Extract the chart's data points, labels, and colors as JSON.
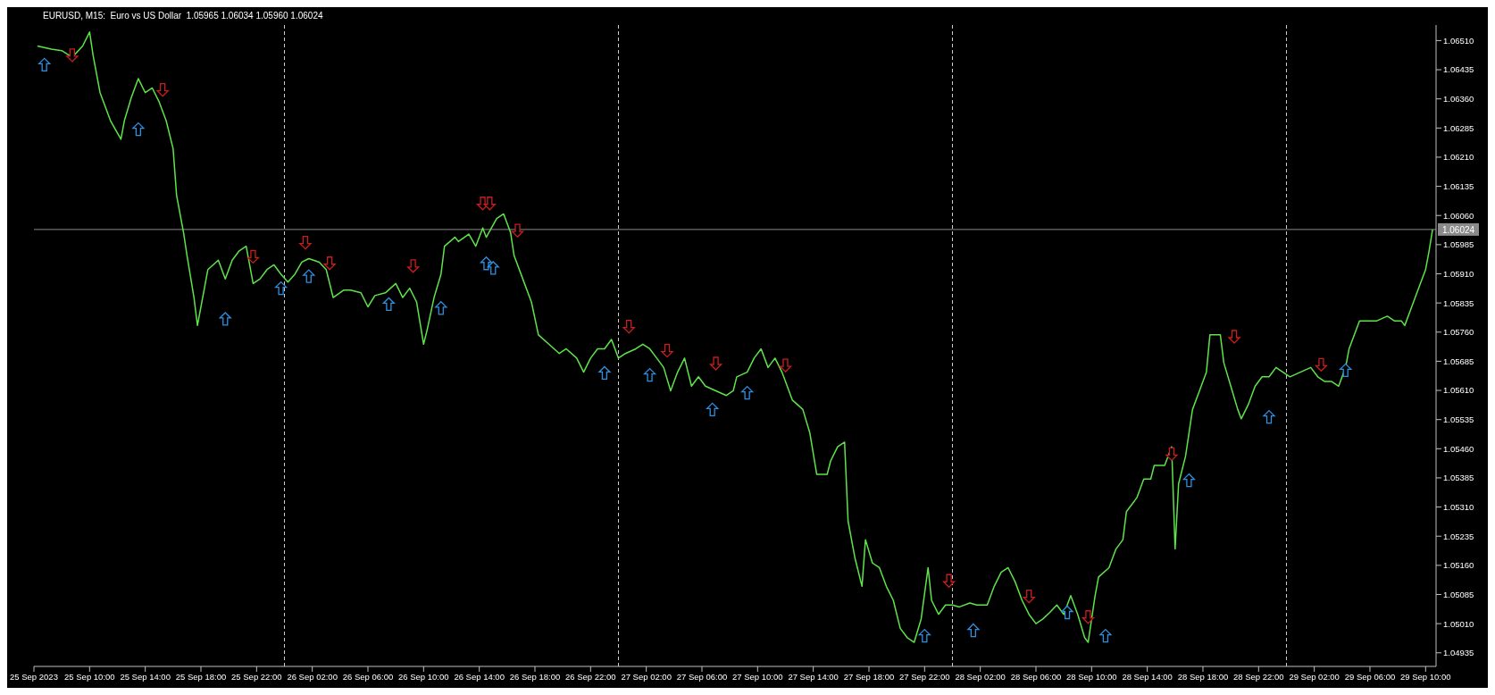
{
  "chart_data": {
    "type": "line",
    "title": "EURUSD, M15:  Euro vs US Dollar  1.05965 1.06034 1.05960 1.06024",
    "series": [
      {
        "color": "#5ee34a",
        "x": [
          "2023-09-25T06:15",
          "2023-09-25T07:15",
          "2023-09-25T08:00",
          "2023-09-25T08:45",
          "2023-09-25T09:30",
          "2023-09-25T10:00",
          "2023-09-25T10:15",
          "2023-09-25T10:45",
          "2023-09-25T11:30",
          "2023-09-25T12:15",
          "2023-09-25T12:30",
          "2023-09-25T13:00",
          "2023-09-25T13:30",
          "2023-09-25T14:00",
          "2023-09-25T14:30",
          "2023-09-25T15:00",
          "2023-09-25T15:30",
          "2023-09-25T16:00",
          "2023-09-25T16:15",
          "2023-09-25T16:45",
          "2023-09-25T17:00",
          "2023-09-25T17:30",
          "2023-09-25T17:45",
          "2023-09-25T18:15",
          "2023-09-25T18:30",
          "2023-09-25T19:15",
          "2023-09-25T19:45",
          "2023-09-25T20:15",
          "2023-09-25T20:45",
          "2023-09-25T21:15",
          "2023-09-25T21:45",
          "2023-09-25T22:15",
          "2023-09-25T22:45",
          "2023-09-25T23:15",
          "2023-09-25T23:45",
          "2023-09-26T00:15",
          "2023-09-26T00:45",
          "2023-09-26T01:15",
          "2023-09-26T01:45",
          "2023-09-26T02:30",
          "2023-09-26T03:00",
          "2023-09-26T03:30",
          "2023-09-26T04:15",
          "2023-09-26T04:45",
          "2023-09-26T05:30",
          "2023-09-26T06:00",
          "2023-09-26T06:30",
          "2023-09-26T07:15",
          "2023-09-26T08:00",
          "2023-09-26T08:30",
          "2023-09-26T09:00",
          "2023-09-26T09:30",
          "2023-09-26T10:00",
          "2023-09-26T10:15",
          "2023-09-26T10:45",
          "2023-09-26T11:15",
          "2023-09-26T11:30",
          "2023-09-26T12:15",
          "2023-09-26T12:30",
          "2023-09-26T13:15",
          "2023-09-26T13:45",
          "2023-09-26T14:15",
          "2023-09-26T14:30",
          "2023-09-26T15:15",
          "2023-09-26T15:45",
          "2023-09-26T16:15",
          "2023-09-26T16:30",
          "2023-09-26T17:15",
          "2023-09-26T17:45",
          "2023-09-26T18:15",
          "2023-09-26T19:00",
          "2023-09-26T19:45",
          "2023-09-26T20:15",
          "2023-09-26T21:00",
          "2023-09-26T21:30",
          "2023-09-26T22:00",
          "2023-09-26T22:30",
          "2023-09-26T23:00",
          "2023-09-26T23:30",
          "2023-09-27T00:00",
          "2023-09-27T00:30",
          "2023-09-27T01:15",
          "2023-09-27T01:45",
          "2023-09-27T02:15",
          "2023-09-27T02:45",
          "2023-09-27T03:15",
          "2023-09-27T03:45",
          "2023-09-27T04:15",
          "2023-09-27T04:45",
          "2023-09-27T05:15",
          "2023-09-27T05:45",
          "2023-09-27T06:15",
          "2023-09-27T07:00",
          "2023-09-27T07:45",
          "2023-09-27T08:15",
          "2023-09-27T08:30",
          "2023-09-27T09:15",
          "2023-09-27T09:45",
          "2023-09-27T10:15",
          "2023-09-27T10:45",
          "2023-09-27T11:15",
          "2023-09-27T11:45",
          "2023-09-27T12:15",
          "2023-09-27T12:30",
          "2023-09-27T13:15",
          "2023-09-27T13:45",
          "2023-09-27T14:15",
          "2023-09-27T15:00",
          "2023-09-27T15:15",
          "2023-09-27T15:45",
          "2023-09-27T16:15",
          "2023-09-27T16:30",
          "2023-09-27T17:00",
          "2023-09-27T17:30",
          "2023-09-27T17:45",
          "2023-09-27T18:15",
          "2023-09-27T18:45",
          "2023-09-27T19:15",
          "2023-09-27T19:45",
          "2023-09-27T20:15",
          "2023-09-27T20:45",
          "2023-09-27T21:15",
          "2023-09-27T21:45",
          "2023-09-27T22:15",
          "2023-09-27T22:30",
          "2023-09-27T23:00",
          "2023-09-27T23:30",
          "2023-09-28T00:00",
          "2023-09-28T00:30",
          "2023-09-28T01:15",
          "2023-09-28T01:45",
          "2023-09-28T02:30",
          "2023-09-28T03:00",
          "2023-09-28T03:30",
          "2023-09-28T04:00",
          "2023-09-28T04:30",
          "2023-09-28T05:00",
          "2023-09-28T05:30",
          "2023-09-28T06:00",
          "2023-09-28T06:30",
          "2023-09-28T07:00",
          "2023-09-28T07:30",
          "2023-09-28T08:00",
          "2023-09-28T08:30",
          "2023-09-28T09:00",
          "2023-09-28T09:30",
          "2023-09-28T09:45",
          "2023-09-28T10:15",
          "2023-09-28T10:30",
          "2023-09-28T11:15",
          "2023-09-28T11:45",
          "2023-09-28T12:15",
          "2023-09-28T12:30",
          "2023-09-28T13:15",
          "2023-09-28T13:45",
          "2023-09-28T14:15",
          "2023-09-28T14:30",
          "2023-09-28T15:15",
          "2023-09-28T15:45",
          "2023-09-28T16:00",
          "2023-09-28T16:15",
          "2023-09-28T16:45",
          "2023-09-28T17:15",
          "2023-09-28T17:45",
          "2023-09-28T18:15",
          "2023-09-28T18:30",
          "2023-09-28T19:15",
          "2023-09-28T19:30",
          "2023-09-28T20:00",
          "2023-09-28T20:30",
          "2023-09-28T20:45",
          "2023-09-28T21:15",
          "2023-09-28T21:45",
          "2023-09-28T22:15",
          "2023-09-28T22:45",
          "2023-09-28T23:15",
          "2023-09-28T23:45",
          "2023-09-29T00:15",
          "2023-09-29T01:00",
          "2023-09-29T01:45",
          "2023-09-29T02:15",
          "2023-09-29T02:45",
          "2023-09-29T03:15",
          "2023-09-29T03:45",
          "2023-09-29T04:15",
          "2023-09-29T04:30",
          "2023-09-29T05:15",
          "2023-09-29T05:45",
          "2023-09-29T06:30",
          "2023-09-29T07:15",
          "2023-09-29T07:45",
          "2023-09-29T08:15",
          "2023-09-29T08:30",
          "2023-09-29T09:00",
          "2023-09-29T09:30",
          "2023-09-29T10:00",
          "2023-09-29T10:15",
          "2023-09-29T10:30"
        ],
        "values": [
          1.06496,
          1.06488,
          1.06484,
          1.06467,
          1.06496,
          1.06532,
          1.06472,
          1.06376,
          1.06304,
          1.06256,
          1.06304,
          1.06364,
          1.06412,
          1.06376,
          1.06388,
          1.06352,
          1.06304,
          1.06232,
          1.06112,
          1.06016,
          1.05957,
          1.05849,
          1.05777,
          1.05873,
          1.05921,
          1.05945,
          1.05897,
          1.05945,
          1.05969,
          1.05981,
          1.05885,
          1.05897,
          1.05921,
          1.05933,
          1.05909,
          1.05889,
          1.05909,
          1.0594,
          1.05949,
          1.0594,
          1.05921,
          1.05849,
          1.05868,
          1.05868,
          1.05861,
          1.05825,
          1.05854,
          1.05861,
          1.05885,
          1.05849,
          1.05873,
          1.05837,
          1.05729,
          1.05765,
          1.05849,
          1.05909,
          1.05981,
          1.06004,
          1.05993,
          1.06012,
          1.05981,
          1.06028,
          1.06004,
          1.06052,
          1.06064,
          1.06016,
          1.05957,
          1.05885,
          1.05837,
          1.05753,
          1.05729,
          1.05705,
          1.05717,
          1.05693,
          1.05657,
          1.05693,
          1.05717,
          1.05717,
          1.05741,
          1.05693,
          1.05705,
          1.05717,
          1.05729,
          1.05717,
          1.05693,
          1.05669,
          1.05609,
          1.05657,
          1.05693,
          1.05621,
          1.05645,
          1.05621,
          1.05609,
          1.05597,
          1.05609,
          1.05645,
          1.05657,
          1.05693,
          1.05717,
          1.05669,
          1.05693,
          1.05657,
          1.05609,
          1.05585,
          1.05561,
          1.05501,
          1.05394,
          1.05394,
          1.05429,
          1.05465,
          1.05477,
          1.05274,
          1.05178,
          1.05106,
          1.05226,
          1.05166,
          1.05154,
          1.05106,
          1.0507,
          1.04998,
          1.04974,
          1.04962,
          1.05022,
          1.05154,
          1.0507,
          1.05034,
          1.05058,
          1.05058,
          1.05053,
          1.05063,
          1.05058,
          1.05058,
          1.05106,
          1.05142,
          1.05154,
          1.05118,
          1.0507,
          1.05034,
          1.0501,
          1.05022,
          1.05039,
          1.05058,
          1.05034,
          1.05082,
          1.05034,
          1.04974,
          1.04962,
          1.05082,
          1.0513,
          1.05154,
          1.05202,
          1.05226,
          1.05298,
          1.05334,
          1.05382,
          1.05382,
          1.05417,
          1.05417,
          1.05465,
          1.05202,
          1.0537,
          1.05441,
          1.05561,
          1.05609,
          1.05657,
          1.05753,
          1.05753,
          1.05681,
          1.05621,
          1.05561,
          1.05537,
          1.05573,
          1.05621,
          1.05645,
          1.05645,
          1.05669,
          1.05657,
          1.05645,
          1.05657,
          1.05669,
          1.05645,
          1.05633,
          1.05633,
          1.05621,
          1.05669,
          1.05717,
          1.05789,
          1.05789,
          1.05789,
          1.05801,
          1.05789,
          1.05789,
          1.05777,
          1.05825,
          1.05873,
          1.05921,
          1.05969,
          1.06024
        ]
      },
      {
        "type": "scatter",
        "color": "#2f8fe0",
        "marker": "triangle",
        "x": [
          "2023-09-25T06:45",
          "2023-09-25T13:30",
          "2023-09-25T19:45",
          "2023-09-25T23:45",
          "2023-09-26T01:45",
          "2023-09-26T07:30",
          "2023-09-26T11:15",
          "2023-09-26T14:30",
          "2023-09-26T15:00",
          "2023-09-26T23:00",
          "2023-09-27T02:15",
          "2023-09-27T06:45",
          "2023-09-27T09:15",
          "2023-09-27T22:00",
          "2023-09-28T01:30",
          "2023-09-28T08:15",
          "2023-09-28T11:00",
          "2023-09-28T17:00",
          "2023-09-28T22:45",
          "2023-09-29T04:15"
        ],
        "values": [
          1.06448,
          1.06282,
          1.05794,
          1.05873,
          1.05904,
          1.05832,
          1.05822,
          1.05937,
          1.05925,
          1.05655,
          1.0565,
          1.05561,
          1.05604,
          1.04979,
          1.04993,
          1.05039,
          1.04979,
          1.05379,
          1.05542,
          1.05662
        ]
      },
      {
        "type": "scatter",
        "color": "#c81e1e",
        "marker": "triangle-down",
        "x": [
          "2023-09-25T08:45",
          "2023-09-25T15:15",
          "2023-09-25T21:45",
          "2023-09-26T01:30",
          "2023-09-26T03:15",
          "2023-09-26T09:15",
          "2023-09-26T14:15",
          "2023-09-26T14:45",
          "2023-09-26T16:45",
          "2023-09-27T00:45",
          "2023-09-27T03:30",
          "2023-09-27T07:00",
          "2023-09-27T12:00",
          "2023-09-27T23:45",
          "2023-09-28T05:30",
          "2023-09-28T09:45",
          "2023-09-28T15:45",
          "2023-09-28T20:15",
          "2023-09-29T02:30"
        ],
        "values": [
          1.06472,
          1.06383,
          1.05954,
          1.0599,
          1.05937,
          1.0593,
          1.06091,
          1.06091,
          1.06021,
          1.05774,
          1.05712,
          1.05679,
          1.05674,
          1.0512,
          1.0508,
          1.05027,
          1.05446,
          1.05748,
          1.05676
        ]
      }
    ],
    "xlim": [
      "2023-09-25T06:00",
      "2023-09-29T10:45"
    ],
    "xticks": [
      {
        "value": "2023-09-25T06:00",
        "label": "25 Sep 2023"
      },
      {
        "value": "2023-09-25T10:00",
        "label": "25 Sep 10:00"
      },
      {
        "value": "2023-09-25T14:00",
        "label": "25 Sep 14:00"
      },
      {
        "value": "2023-09-25T18:00",
        "label": "25 Sep 18:00"
      },
      {
        "value": "2023-09-25T22:00",
        "label": "25 Sep 22:00"
      },
      {
        "value": "2023-09-26T02:00",
        "label": "26 Sep 02:00"
      },
      {
        "value": "2023-09-26T06:00",
        "label": "26 Sep 06:00"
      },
      {
        "value": "2023-09-26T10:00",
        "label": "26 Sep 10:00"
      },
      {
        "value": "2023-09-26T14:00",
        "label": "26 Sep 14:00"
      },
      {
        "value": "2023-09-26T18:00",
        "label": "26 Sep 18:00"
      },
      {
        "value": "2023-09-26T22:00",
        "label": "26 Sep 22:00"
      },
      {
        "value": "2023-09-27T02:00",
        "label": "27 Sep 02:00"
      },
      {
        "value": "2023-09-27T06:00",
        "label": "27 Sep 06:00"
      },
      {
        "value": "2023-09-27T10:00",
        "label": "27 Sep 10:00"
      },
      {
        "value": "2023-09-27T14:00",
        "label": "27 Sep 14:00"
      },
      {
        "value": "2023-09-27T18:00",
        "label": "27 Sep 18:00"
      },
      {
        "value": "2023-09-27T22:00",
        "label": "27 Sep 22:00"
      },
      {
        "value": "2023-09-28T02:00",
        "label": "28 Sep 02:00"
      },
      {
        "value": "2023-09-28T06:00",
        "label": "28 Sep 06:00"
      },
      {
        "value": "2023-09-28T10:00",
        "label": "28 Sep 10:00"
      },
      {
        "value": "2023-09-28T14:00",
        "label": "28 Sep 14:00"
      },
      {
        "value": "2023-09-28T18:00",
        "label": "28 Sep 18:00"
      },
      {
        "value": "2023-09-28T22:00",
        "label": "28 Sep 22:00"
      },
      {
        "value": "2023-09-29T02:00",
        "label": "29 Sep 02:00"
      },
      {
        "value": "2023-09-29T06:00",
        "label": "29 Sep 06:00"
      },
      {
        "value": "2023-09-29T10:00",
        "label": "29 Sep 10:00"
      }
    ],
    "ylim": [
      1.049,
      1.0655
    ],
    "yticks": [
      {
        "value": 1.04935,
        "label": "1.04935"
      },
      {
        "value": 1.0501,
        "label": "1.05010"
      },
      {
        "value": 1.05085,
        "label": "1.05085"
      },
      {
        "value": 1.0516,
        "label": "1.05160"
      },
      {
        "value": 1.05235,
        "label": "1.05235"
      },
      {
        "value": 1.0531,
        "label": "1.05310"
      },
      {
        "value": 1.05385,
        "label": "1.05385"
      },
      {
        "value": 1.0546,
        "label": "1.05460"
      },
      {
        "value": 1.05535,
        "label": "1.05535"
      },
      {
        "value": 1.0561,
        "label": "1.05610"
      },
      {
        "value": 1.05685,
        "label": "1.05685"
      },
      {
        "value": 1.0576,
        "label": "1.05760"
      },
      {
        "value": 1.05835,
        "label": "1.05835"
      },
      {
        "value": 1.0591,
        "label": "1.05910"
      },
      {
        "value": 1.05985,
        "label": "1.05985"
      },
      {
        "value": 1.0606,
        "label": "1.06060"
      },
      {
        "value": 1.06135,
        "label": "1.06135"
      },
      {
        "value": 1.0621,
        "label": "1.06210"
      },
      {
        "value": 1.06285,
        "label": "1.06285"
      },
      {
        "value": 1.0636,
        "label": "1.06360"
      },
      {
        "value": 1.06435,
        "label": "1.06435"
      },
      {
        "value": 1.0651,
        "label": "1.06510"
      }
    ],
    "ref_lines": [
      {
        "axis": "y",
        "value": 1.06024,
        "label": "1.06024",
        "color": "#8a8a8a",
        "line_style": "solid"
      },
      {
        "axis": "x",
        "value": "2023-09-26T00:00",
        "color": "#d0d0d0",
        "line_style": "dashed"
      },
      {
        "axis": "x",
        "value": "2023-09-27T00:00",
        "color": "#d0d0d0",
        "line_style": "dashed"
      },
      {
        "axis": "x",
        "value": "2023-09-28T00:00",
        "color": "#d0d0d0",
        "line_style": "dashed"
      },
      {
        "axis": "x",
        "value": "2023-09-29T00:00",
        "color": "#d0d0d0",
        "line_style": "dashed"
      }
    ]
  }
}
